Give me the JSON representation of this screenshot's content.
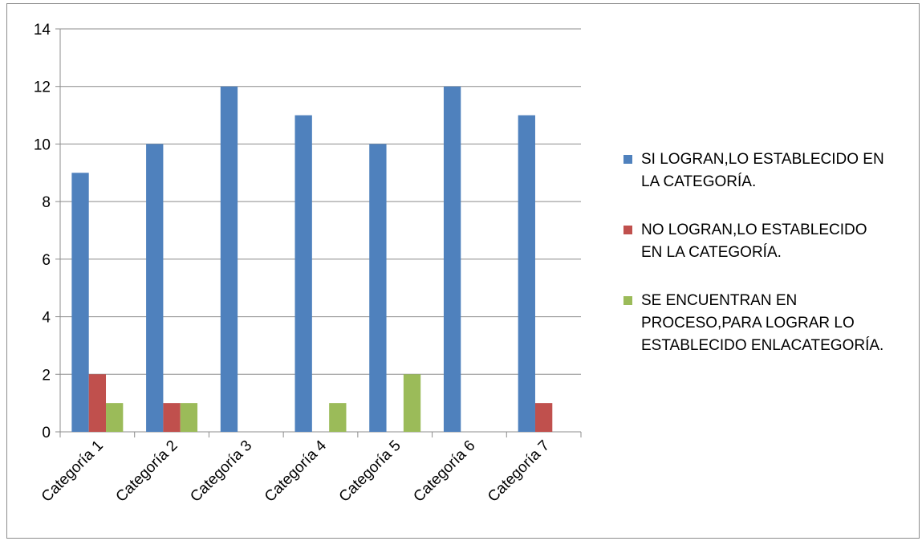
{
  "chart_data": {
    "type": "bar",
    "categories": [
      "Categoría 1",
      "Categoría 2",
      "Categoría 3",
      "Categoría 4",
      "Categoría 5",
      "Categoría 6",
      "Categoría 7"
    ],
    "series": [
      {
        "name": "SI LOGRAN,LO ESTABLECIDO EN\nLA CATEGORÍA.",
        "color": "#4F81BD",
        "values": [
          9,
          10,
          12,
          11,
          10,
          12,
          11
        ]
      },
      {
        "name": "NO LOGRAN,LO ESTABLECIDO\nEN LA CATEGORÍA.",
        "color": "#C0504D",
        "values": [
          2,
          1,
          0,
          0,
          0,
          0,
          1
        ]
      },
      {
        "name": "SE ENCUENTRAN EN\nPROCESO,PARA LOGRAR LO\nESTABLECIDO ENLACATEGORÍA.",
        "color": "#9BBB59",
        "values": [
          1,
          1,
          0,
          1,
          2,
          0,
          0
        ]
      }
    ],
    "yticks": [
      "0",
      "2",
      "4",
      "6",
      "8",
      "10",
      "12",
      "14"
    ],
    "ylim": [
      0,
      14
    ],
    "grid": true,
    "legend": "right"
  }
}
